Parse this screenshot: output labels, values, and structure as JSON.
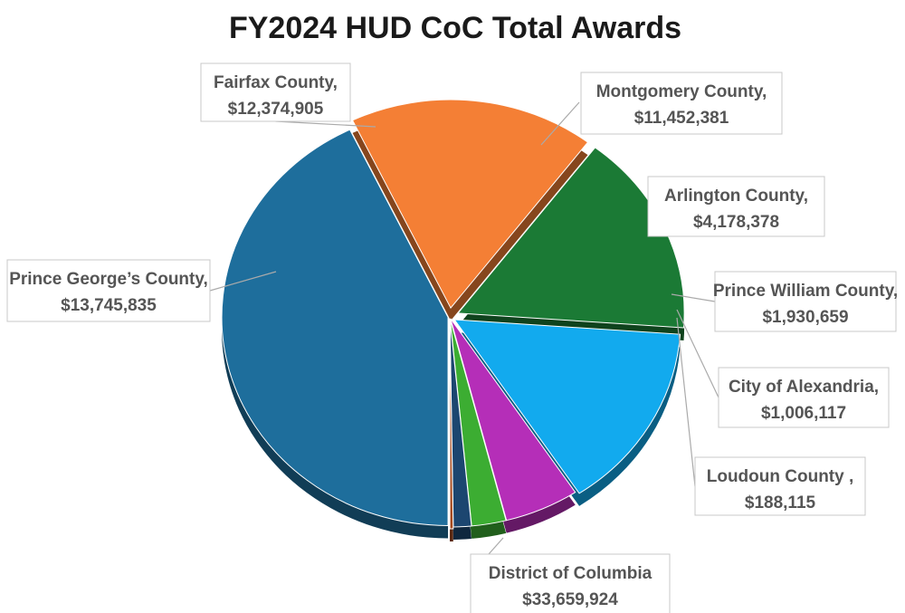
{
  "chart_data": {
    "type": "pie",
    "title": "FY2024 HUD CoC Total Awards",
    "slices": [
      {
        "label": "District of Columbia",
        "value": 33659924,
        "value_text": "$33,659,924",
        "color": "#1e6e9c"
      },
      {
        "label": "Prince George’s County,",
        "value": 13745835,
        "value_text": "$13,745,835",
        "color": "#f47f35"
      },
      {
        "label": "Fairfax County,",
        "value": 12374905,
        "value_text": "$12,374,905",
        "color": "#1b7a35"
      },
      {
        "label": "Montgomery County,",
        "value": 11452381,
        "value_text": "$11,452,381",
        "color": "#12aaee"
      },
      {
        "label": "Arlington County,",
        "value": 4178378,
        "value_text": "$4,178,378",
        "color": "#b52eb8"
      },
      {
        "label": "Prince William County,",
        "value": 1930659,
        "value_text": "$1,930,659",
        "color": "#3cad32"
      },
      {
        "label": "City of Alexandria,",
        "value": 1006117,
        "value_text": "$1,006,117",
        "color": "#1c4670"
      },
      {
        "label": "Loudoun County ,",
        "value": 188115,
        "value_text": "$188,115",
        "color": "#a4491e"
      }
    ]
  }
}
